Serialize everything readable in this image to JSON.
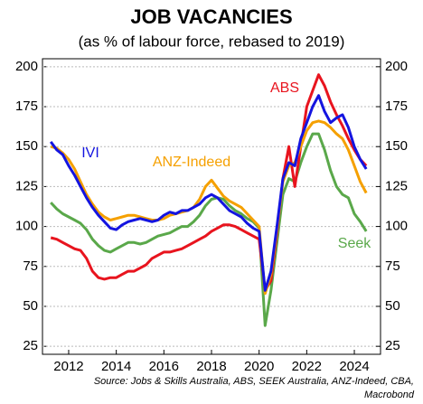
{
  "chart_data": {
    "type": "line",
    "title": "JOB VACANCIES",
    "subtitle": "(as % of labour force, rebased to 2019)",
    "source": [
      "Source: Jobs & Skills Australia, ABS, SEEK Australia, ANZ-Indeed, CBA,",
      "Macrobond"
    ],
    "x": [
      2011.25,
      2011.5,
      2011.75,
      2012,
      2012.25,
      2012.5,
      2012.75,
      2013,
      2013.25,
      2013.5,
      2013.75,
      2014,
      2014.25,
      2014.5,
      2014.75,
      2015,
      2015.25,
      2015.5,
      2015.75,
      2016,
      2016.25,
      2016.5,
      2016.75,
      2017,
      2017.25,
      2017.5,
      2017.75,
      2018,
      2018.25,
      2018.5,
      2018.75,
      2019,
      2019.25,
      2019.5,
      2019.75,
      2020,
      2020.25,
      2020.5,
      2020.75,
      2021,
      2021.25,
      2021.5,
      2021.75,
      2022,
      2022.25,
      2022.5,
      2022.75,
      2023,
      2023.25,
      2023.5,
      2023.75,
      2024,
      2024.25,
      2024.5
    ],
    "series": [
      {
        "name": "IVI",
        "color": "#1414e0",
        "values": [
          153,
          148,
          145,
          138,
          132,
          125,
          118,
          112,
          107,
          103,
          99,
          98,
          101,
          103,
          104,
          105,
          104,
          103,
          104,
          107,
          109,
          108,
          110,
          110,
          112,
          114,
          118,
          120,
          118,
          114,
          110,
          108,
          106,
          102,
          99,
          97,
          60,
          72,
          100,
          130,
          140,
          138,
          155,
          165,
          175,
          182,
          172,
          165,
          168,
          170,
          162,
          150,
          142,
          136
        ]
      },
      {
        "name": "ANZ-Indeed",
        "color": "#f5a000",
        "values": [
          150,
          149,
          146,
          142,
          136,
          128,
          120,
          114,
          109,
          106,
          104,
          105,
          106,
          107,
          107,
          106,
          105,
          104,
          104,
          105,
          107,
          108,
          109,
          110,
          112,
          117,
          125,
          129,
          124,
          119,
          116,
          114,
          112,
          108,
          104,
          100,
          58,
          70,
          98,
          128,
          138,
          140,
          150,
          160,
          165,
          166,
          165,
          162,
          158,
          155,
          148,
          138,
          128,
          121
        ]
      },
      {
        "name": "ABS",
        "color": "#e8141e",
        "values": [
          93,
          92,
          90,
          88,
          86,
          85,
          80,
          72,
          68,
          67,
          68,
          68,
          70,
          72,
          72,
          74,
          76,
          80,
          82,
          84,
          84,
          85,
          86,
          88,
          90,
          92,
          94,
          97,
          99,
          101,
          101,
          100,
          98,
          96,
          94,
          92,
          60,
          66,
          96,
          130,
          150,
          125,
          150,
          175,
          185,
          195,
          188,
          178,
          170,
          163,
          155,
          148,
          142,
          138
        ]
      },
      {
        "name": "Seek",
        "color": "#5aa84a",
        "values": [
          115,
          111,
          108,
          106,
          104,
          102,
          98,
          92,
          88,
          85,
          84,
          86,
          88,
          90,
          90,
          89,
          90,
          92,
          94,
          95,
          96,
          98,
          100,
          100,
          103,
          107,
          113,
          117,
          118,
          117,
          113,
          110,
          108,
          105,
          103,
          99,
          38,
          60,
          90,
          120,
          130,
          128,
          140,
          150,
          158,
          158,
          148,
          135,
          125,
          120,
          118,
          108,
          103,
          97
        ]
      }
    ],
    "xlim": [
      2010.9,
      2025.1
    ],
    "xticks": [
      2012,
      2014,
      2016,
      2018,
      2020,
      2022,
      2024
    ],
    "ylim": [
      20,
      205
    ],
    "yticks": [
      25,
      50,
      75,
      100,
      125,
      150,
      175,
      200
    ],
    "y2lim": [
      20,
      205
    ],
    "y2ticks": [
      25,
      50,
      75,
      100,
      125,
      150,
      175,
      200
    ],
    "grid": true
  }
}
